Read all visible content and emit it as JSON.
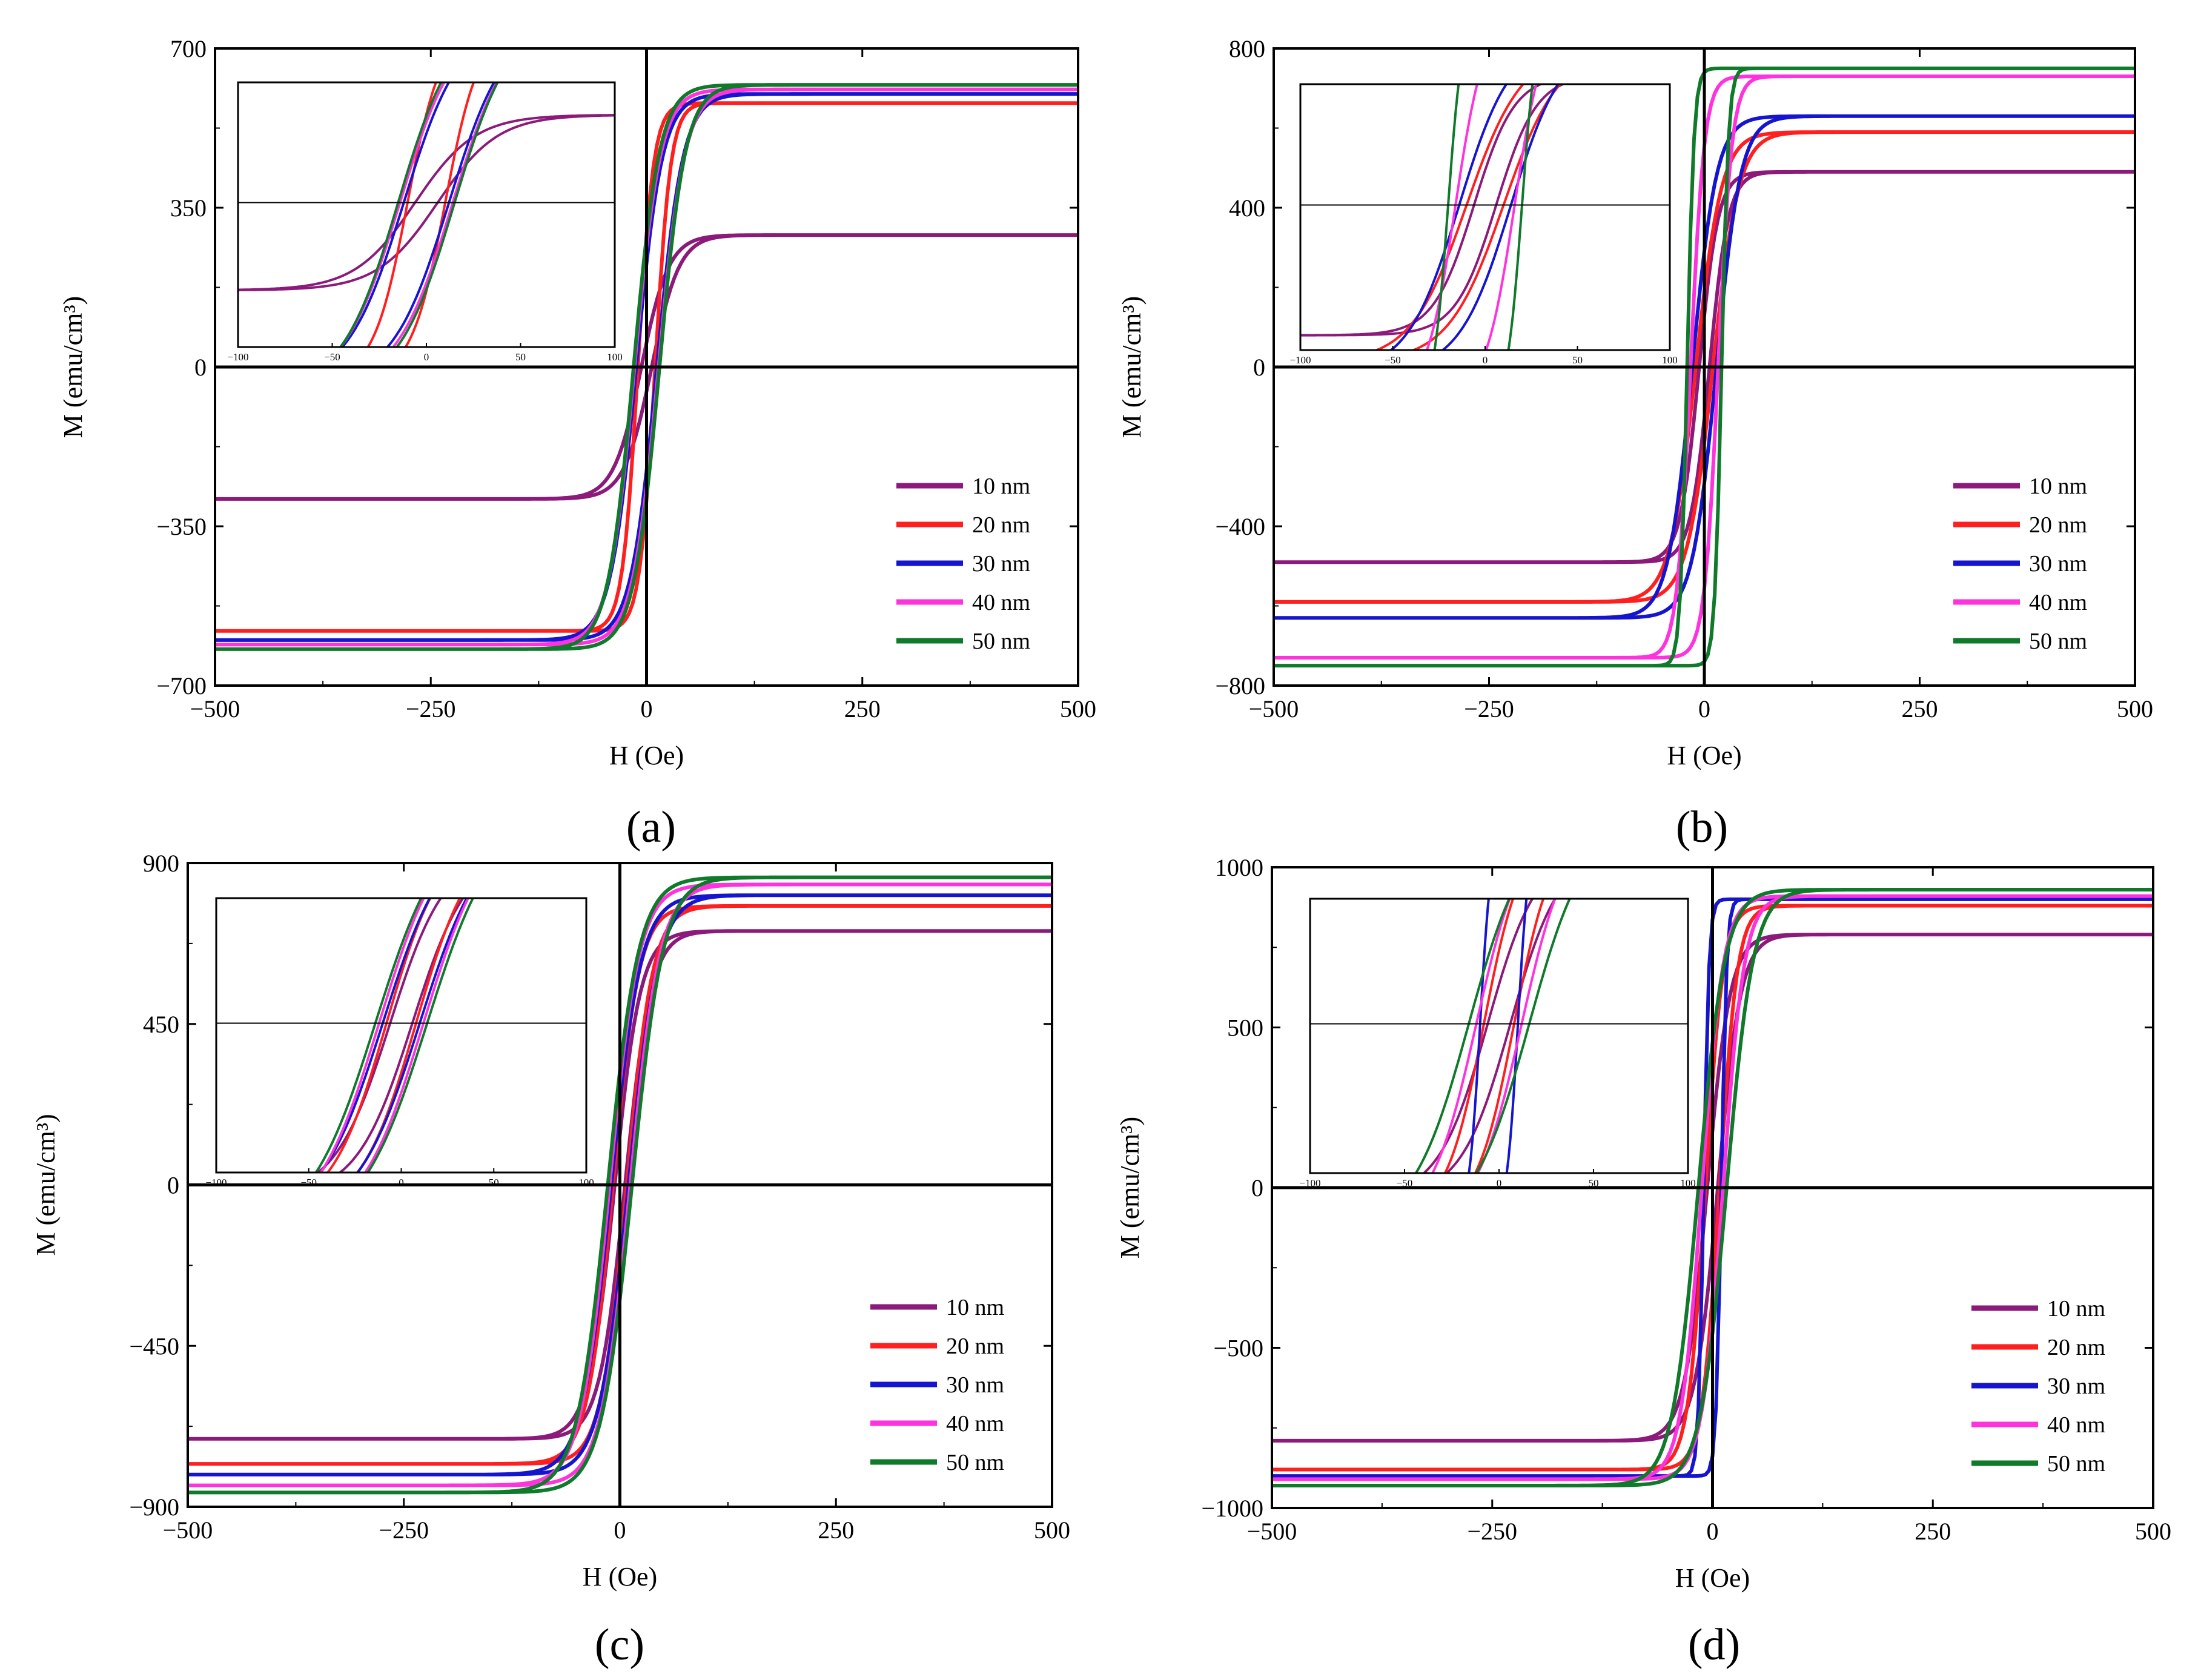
{
  "figure": {
    "colors": {
      "10 nm": "#8b1a7a",
      "20 nm": "#ff1f1f",
      "30 nm": "#1515d0",
      "40 nm": "#ff33dd",
      "50 nm": "#0f7a2a"
    }
  },
  "chart_data": [
    {
      "type": "line",
      "label": "(a)",
      "xlabel": "H (Oe)",
      "ylabel": "M (emu/cm³)",
      "xlim": [
        -500,
        500
      ],
      "ylim": [
        -700,
        700
      ],
      "xticks": [
        "−500",
        "−250",
        "0",
        "250",
        "500"
      ],
      "xtick_values": [
        -500,
        -250,
        0,
        250,
        500
      ],
      "yticks": [
        "700",
        "350",
        "0",
        "−350",
        "−700"
      ],
      "ytick_values": [
        700,
        350,
        0,
        -350,
        -700
      ],
      "legend_position": "lower-right",
      "series": [
        {
          "name": "10 nm",
          "ms": 290,
          "hc": 6,
          "w": 32
        },
        {
          "name": "20 nm",
          "ms": 580,
          "hc": 10,
          "w": 18
        },
        {
          "name": "30 nm",
          "ms": 600,
          "hc": 12,
          "w": 30
        },
        {
          "name": "40 nm",
          "ms": 610,
          "hc": 14,
          "w": 30
        },
        {
          "name": "50 nm",
          "ms": 620,
          "hc": 15,
          "w": 30
        }
      ],
      "inset": {
        "xlim": [
          -100,
          100
        ],
        "xticks": [
          "−100",
          "−50",
          "0",
          "50",
          "100"
        ],
        "xtick_values": [
          -100,
          -50,
          0,
          50,
          100
        ],
        "ylim": [
          -700,
          700
        ]
      }
    },
    {
      "type": "line",
      "label": "(b)",
      "xlabel": "H (Oe)",
      "ylabel": "M (emu/cm³)",
      "xlim": [
        -500,
        500
      ],
      "ylim": [
        -800,
        800
      ],
      "xticks": [
        "−500",
        "−250",
        "0",
        "250",
        "500"
      ],
      "xtick_values": [
        -500,
        -250,
        0,
        250,
        500
      ],
      "yticks": [
        "800",
        "400",
        "0",
        "−400",
        "−800"
      ],
      "ytick_values": [
        800,
        400,
        0,
        -400,
        -800
      ],
      "legend_position": "lower-right",
      "series": [
        {
          "name": "10 nm",
          "ms": 490,
          "hc": 6,
          "w": 22
        },
        {
          "name": "20 nm",
          "ms": 590,
          "hc": 10,
          "w": 30
        },
        {
          "name": "30 nm",
          "ms": 630,
          "hc": 14,
          "w": 28
        },
        {
          "name": "40 nm",
          "ms": 730,
          "hc": 16,
          "w": 16
        },
        {
          "name": "50 nm",
          "ms": 750,
          "hc": 20,
          "w": 8
        }
      ],
      "inset": {
        "xlim": [
          -100,
          100
        ],
        "xticks": [
          "−100",
          "−50",
          "0",
          "50",
          "100"
        ],
        "xtick_values": [
          -100,
          -50,
          0,
          50,
          100
        ],
        "ylim": [
          -800,
          800
        ]
      }
    },
    {
      "type": "line",
      "label": "(c)",
      "xlabel": "H (Oe)",
      "ylabel": "M (emu/cm³)",
      "xlim": [
        -500,
        500
      ],
      "ylim": [
        -900,
        900
      ],
      "xticks": [
        "−500",
        "−250",
        "0",
        "250",
        "500"
      ],
      "xtick_values": [
        -500,
        -250,
        0,
        250,
        500
      ],
      "yticks": [
        "900",
        "450",
        "0",
        "−450",
        "−900"
      ],
      "yticks_side_note": "",
      "ytick_values": [
        900,
        450,
        0,
        -450,
        -900
      ],
      "legend_position": "lower-right",
      "series": [
        {
          "name": "10 nm",
          "ms": 710,
          "hc": 6,
          "w": 30
        },
        {
          "name": "20 nm",
          "ms": 780,
          "hc": 8,
          "w": 30
        },
        {
          "name": "30 nm",
          "ms": 810,
          "hc": 10,
          "w": 34
        },
        {
          "name": "40 nm",
          "ms": 840,
          "hc": 12,
          "w": 34
        },
        {
          "name": "50 nm",
          "ms": 860,
          "hc": 14,
          "w": 36
        }
      ],
      "inset": {
        "xlim": [
          -100,
          100
        ],
        "xticks": [
          "−100",
          "−50",
          "0",
          "50",
          "100"
        ],
        "xtick_values": [
          -100,
          -50,
          0,
          50,
          100
        ],
        "ylim": [
          -900,
          900
        ]
      }
    },
    {
      "type": "line",
      "label": "(d)",
      "xlabel": "H (Oe)",
      "ylabel": "M (emu/cm³)",
      "xlim": [
        -500,
        500
      ],
      "ylim": [
        -1000,
        1000
      ],
      "xticks": [
        "−500",
        "−250",
        "0",
        "250",
        "500"
      ],
      "xtick_values": [
        -500,
        -250,
        0,
        250,
        500
      ],
      "yticks": [
        "1000",
        "500",
        "0",
        "−500",
        "−1000"
      ],
      "ytick_values": [
        1000,
        500,
        0,
        -500,
        -1000
      ],
      "legend_position": "lower-right",
      "series": [
        {
          "name": "10 nm",
          "ms": 790,
          "hc": 6,
          "w": 26
        },
        {
          "name": "20 nm",
          "ms": 880,
          "hc": 8,
          "w": 20
        },
        {
          "name": "30 nm",
          "ms": 900,
          "hc": 10,
          "w": 6
        },
        {
          "name": "40 nm",
          "ms": 910,
          "hc": 12,
          "w": 24
        },
        {
          "name": "50 nm",
          "ms": 930,
          "hc": 16,
          "w": 30
        }
      ],
      "inset": {
        "xlim": [
          -100,
          100
        ],
        "xticks": [
          "−100",
          "−50",
          "0",
          "50",
          "100"
        ],
        "xtick_values": [
          -100,
          -50,
          0,
          50,
          100
        ],
        "ylim": [
          -1000,
          1000
        ]
      }
    }
  ]
}
